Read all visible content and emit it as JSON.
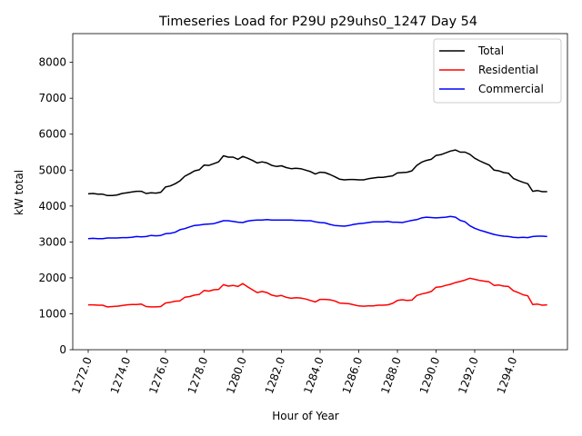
{
  "chart_data": {
    "type": "line",
    "title": "Timeseries Load for P29U p29uhs0_1247  Day 54",
    "xlabel": "Hour of Year",
    "ylabel": "kW total",
    "xlim": [
      1271.2,
      1296.8
    ],
    "ylim": [
      0,
      8800
    ],
    "xticks": [
      1272,
      1274,
      1276,
      1278,
      1280,
      1282,
      1284,
      1286,
      1288,
      1290,
      1292,
      1294
    ],
    "xtick_labels": [
      "1272.0",
      "1274.0",
      "1276.0",
      "1278.0",
      "1280.0",
      "1282.0",
      "1284.0",
      "1286.0",
      "1288.0",
      "1290.0",
      "1292.0",
      "1294.0"
    ],
    "yticks": [
      0,
      1000,
      2000,
      3000,
      4000,
      5000,
      6000,
      7000,
      8000
    ],
    "ytick_labels": [
      "0",
      "1000",
      "2000",
      "3000",
      "4000",
      "5000",
      "6000",
      "7000",
      "8000"
    ],
    "legend_position": "top-right",
    "x": [
      1272.0,
      1272.25,
      1272.5,
      1272.75,
      1273.0,
      1273.25,
      1273.5,
      1273.75,
      1274.0,
      1274.25,
      1274.5,
      1274.75,
      1275.0,
      1275.25,
      1275.5,
      1275.75,
      1276.0,
      1276.25,
      1276.5,
      1276.75,
      1277.0,
      1277.25,
      1277.5,
      1277.75,
      1278.0,
      1278.25,
      1278.5,
      1278.75,
      1279.0,
      1279.25,
      1279.5,
      1279.75,
      1280.0,
      1280.25,
      1280.5,
      1280.75,
      1281.0,
      1281.25,
      1281.5,
      1281.75,
      1282.0,
      1282.25,
      1282.5,
      1282.75,
      1283.0,
      1283.25,
      1283.5,
      1283.75,
      1284.0,
      1284.25,
      1284.5,
      1284.75,
      1285.0,
      1285.25,
      1285.5,
      1285.75,
      1286.0,
      1286.25,
      1286.5,
      1286.75,
      1287.0,
      1287.25,
      1287.5,
      1287.75,
      1288.0,
      1288.25,
      1288.5,
      1288.75,
      1289.0,
      1289.25,
      1289.5,
      1289.75,
      1290.0,
      1290.25,
      1290.5,
      1290.75,
      1291.0,
      1291.25,
      1291.5,
      1291.75,
      1292.0,
      1292.25,
      1292.5,
      1292.75,
      1293.0,
      1293.25,
      1293.5,
      1293.75,
      1294.0,
      1294.25,
      1294.5,
      1294.75,
      1295.0,
      1295.25,
      1295.5,
      1295.75
    ],
    "series": [
      {
        "name": "Total",
        "color": "#000000",
        "values": [
          4340,
          4350,
          4330,
          4330,
          4290,
          4290,
          4310,
          4350,
          4370,
          4390,
          4410,
          4410,
          4350,
          4370,
          4360,
          4380,
          4530,
          4560,
          4620,
          4700,
          4830,
          4900,
          4980,
          5010,
          5140,
          5130,
          5180,
          5230,
          5400,
          5360,
          5360,
          5300,
          5380,
          5330,
          5270,
          5200,
          5230,
          5200,
          5130,
          5100,
          5120,
          5070,
          5040,
          5050,
          5040,
          5000,
          4960,
          4890,
          4940,
          4930,
          4880,
          4820,
          4750,
          4730,
          4740,
          4740,
          4730,
          4730,
          4760,
          4780,
          4800,
          4800,
          4820,
          4840,
          4920,
          4930,
          4940,
          4980,
          5130,
          5220,
          5270,
          5300,
          5410,
          5430,
          5480,
          5530,
          5560,
          5500,
          5500,
          5440,
          5330,
          5260,
          5200,
          5140,
          5000,
          4980,
          4930,
          4910,
          4770,
          4710,
          4660,
          4620,
          4410,
          4430,
          4400,
          4400
        ]
      },
      {
        "name": "Residential",
        "color": "#ff0000",
        "values": [
          1250,
          1250,
          1240,
          1240,
          1190,
          1200,
          1210,
          1230,
          1250,
          1260,
          1260,
          1270,
          1200,
          1190,
          1190,
          1200,
          1300,
          1320,
          1350,
          1360,
          1460,
          1480,
          1520,
          1540,
          1650,
          1630,
          1670,
          1680,
          1810,
          1770,
          1790,
          1760,
          1840,
          1750,
          1670,
          1590,
          1620,
          1590,
          1520,
          1490,
          1510,
          1460,
          1430,
          1450,
          1440,
          1410,
          1370,
          1330,
          1400,
          1400,
          1390,
          1360,
          1300,
          1290,
          1280,
          1250,
          1220,
          1210,
          1220,
          1220,
          1240,
          1240,
          1250,
          1290,
          1370,
          1390,
          1370,
          1380,
          1510,
          1550,
          1580,
          1620,
          1740,
          1750,
          1790,
          1820,
          1870,
          1900,
          1940,
          1990,
          1960,
          1930,
          1910,
          1890,
          1790,
          1800,
          1770,
          1760,
          1640,
          1590,
          1530,
          1500,
          1260,
          1270,
          1240,
          1250
        ]
      },
      {
        "name": "Commercial",
        "color": "#0000ff",
        "values": [
          3090,
          3100,
          3090,
          3090,
          3110,
          3110,
          3110,
          3120,
          3120,
          3130,
          3150,
          3140,
          3150,
          3180,
          3170,
          3180,
          3230,
          3240,
          3270,
          3340,
          3370,
          3420,
          3460,
          3470,
          3490,
          3500,
          3510,
          3550,
          3590,
          3590,
          3570,
          3550,
          3540,
          3580,
          3600,
          3610,
          3610,
          3620,
          3610,
          3610,
          3610,
          3610,
          3610,
          3600,
          3600,
          3590,
          3590,
          3560,
          3540,
          3530,
          3490,
          3460,
          3450,
          3440,
          3460,
          3490,
          3510,
          3520,
          3540,
          3560,
          3560,
          3560,
          3570,
          3550,
          3550,
          3540,
          3570,
          3600,
          3620,
          3670,
          3690,
          3680,
          3670,
          3680,
          3690,
          3710,
          3690,
          3600,
          3560,
          3450,
          3380,
          3330,
          3290,
          3250,
          3210,
          3180,
          3160,
          3150,
          3130,
          3120,
          3130,
          3120,
          3150,
          3160,
          3160,
          3150
        ]
      }
    ]
  }
}
